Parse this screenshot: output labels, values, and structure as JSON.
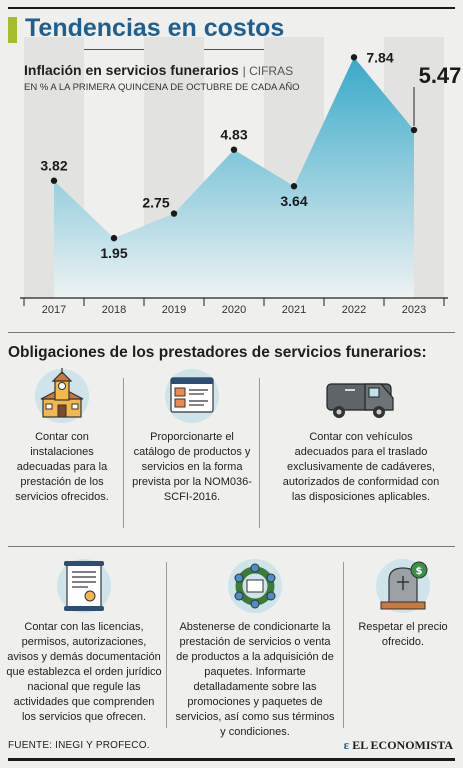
{
  "header": {
    "title": "Tendencias en costos"
  },
  "chart_head": {
    "title": "Inflación en servicios funerarios",
    "title_sep": "| CIFRAS",
    "subtitle": "EN % A LA PRIMERA QUINCENA DE OCTUBRE DE CADA AÑO"
  },
  "chart_data": {
    "type": "area",
    "categories": [
      "2017",
      "2018",
      "2019",
      "2020",
      "2021",
      "2022",
      "2023"
    ],
    "values": [
      3.82,
      1.95,
      2.75,
      4.83,
      3.64,
      7.84,
      5.47
    ],
    "value_labels": [
      "3.82",
      "1.95",
      "2.75",
      "4.83",
      "3.64",
      "7.84",
      "5.47"
    ],
    "highlight_index": 6,
    "ylim": [
      0,
      8.5
    ],
    "grid": false,
    "colors": {
      "area_top": "#3aa9c9",
      "area_bottom": "#eef2f3",
      "marker": "#1a1a1a",
      "band": "#e2e2e0"
    }
  },
  "section": {
    "title": "Obligaciones de los prestadores de servicios funerarios:"
  },
  "obligations": [
    {
      "icon": "funeral-home-icon",
      "text": "Contar con instalaciones adecuadas para la prestación de los servicios ofrecidos."
    },
    {
      "icon": "catalog-icon",
      "text": "Proporcionarte el catálogo de productos y servicios en la forma prevista por la NOM036-SCFI-2016."
    },
    {
      "icon": "hearse-icon",
      "text": "Contar con vehículos adecuados para el traslado exclusivamente de cadáveres, autorizados de conformidad con las disposiciones aplicables."
    },
    {
      "icon": "certificate-icon",
      "text": "Contar con las licencias, permisos, autorizaciones, avisos y demás documentación que establezca el orden jurídico nacional que regule las actividades que comprenden los servicios que ofrecen."
    },
    {
      "icon": "wreath-icon",
      "text": "Abstenerse de condicionarte la prestación de servicios o venta de productos a la adquisición de paquetes. Informarte detalladamente sobre las promociones y paquetes de servicios, así como sus términos y condiciones."
    },
    {
      "icon": "tombstone-price-icon",
      "text": "Respetar el precio ofrecido."
    }
  ],
  "footer": {
    "source": "FUENTE: INEGI Y PROFECO.",
    "logo": "EL ECONOMISTA",
    "logo_glyph": "ε"
  },
  "colors": {
    "title_blue": "#1f5f8f",
    "accent_green": "#a3bd2d",
    "icon_circle": "#cfe3ea"
  }
}
